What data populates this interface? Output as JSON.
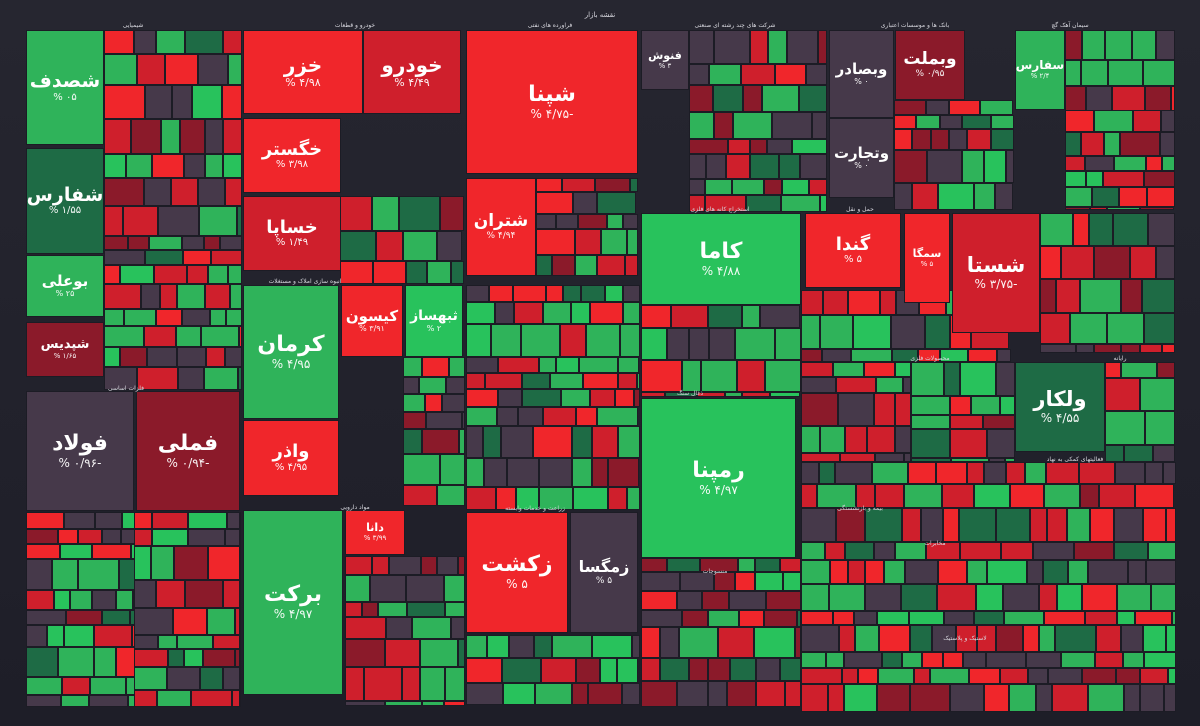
{
  "title": "نقشه بازار",
  "colors": {
    "strong_red": "#f0262b",
    "red": "#cf1f2c",
    "dark_red": "#8b1a2a",
    "neutral": "#46394a",
    "dark_green": "#1e6b45",
    "green": "#2fb35a",
    "bright_green": "#28c25c"
  },
  "sectors": [
    "شیمیایی",
    "خودرو و قطعات",
    "فراورده های نفتی",
    "شرکت های چند رشته ای صنعتی",
    "بانک ها و موسسات اعتباری",
    "سیمان آهک گچ",
    "فلزات اساسی",
    "انبوه سازی املاک و مستغلات",
    "استخراج کانه های فلزی",
    "حمل و نقل",
    "محصولات فلزی",
    "ذغال سنگ",
    "بیمه و بازنشستگی",
    "رایانه",
    "زراعت و خدمات وابسته",
    "مواد دارویی",
    "فعالیتهای کمکی به نهاد",
    "مخابرات",
    "منسوجات",
    "لاستیک و پلاستیک"
  ],
  "chart_data": {
    "type": "heatmap",
    "title": "نقشه بازار",
    "value_unit": "%",
    "tiles": [
      {
        "sector": "شیمیایی",
        "symbol": "شصدف",
        "change": "% ۰۵",
        "tone": "green"
      },
      {
        "sector": "شیمیایی",
        "symbol": "شفارس",
        "change": "% ۱/۵۵",
        "tone": "dark_green"
      },
      {
        "sector": "شیمیایی",
        "symbol": "بوعلی",
        "change": "% ۲۵",
        "tone": "green"
      },
      {
        "sector": "شیمیایی",
        "symbol": "شپدیس",
        "change": "% ۱/۶۵",
        "tone": "dark_red"
      },
      {
        "sector": "خودرو و قطعات",
        "symbol": "خزر",
        "change": "% ۴/۹۸",
        "tone": "strong_red"
      },
      {
        "sector": "خودرو و قطعات",
        "symbol": "خودرو",
        "change": "% ۴/۴۹",
        "tone": "red"
      },
      {
        "sector": "خودرو و قطعات",
        "symbol": "خگستر",
        "change": "% ۳/۹۸",
        "tone": "strong_red"
      },
      {
        "sector": "خودرو و قطعات",
        "symbol": "خساپا",
        "change": "% ۱/۴۹",
        "tone": "red"
      },
      {
        "sector": "فراورده های نفتی",
        "symbol": "شپنا",
        "change": "% ۴/۷۵-",
        "tone": "strong_red"
      },
      {
        "sector": "فراورده های نفتی",
        "symbol": "شتران",
        "change": "% ۴/۹۴",
        "tone": "strong_red"
      },
      {
        "sector": "شرکت های چند رشته ای صنعتی",
        "symbol": "فنوش",
        "change": "% ۳",
        "tone": "neutral"
      },
      {
        "sector": "بانک ها و موسسات اعتباری",
        "symbol": "وبصادر",
        "change": "% ۰",
        "tone": "neutral"
      },
      {
        "sector": "بانک ها و موسسات اعتباری",
        "symbol": "وبملت",
        "change": "% ۰/۹۵",
        "tone": "dark_red"
      },
      {
        "sector": "بانک ها و موسسات اعتباری",
        "symbol": "وتجارت",
        "change": "% ۰",
        "tone": "neutral"
      },
      {
        "sector": "سیمان آهک گچ",
        "symbol": "سفارس",
        "change": "% ۲/۴",
        "tone": "green"
      },
      {
        "sector": "فلزات اساسی",
        "symbol": "فولاد",
        "change": "% ۰/۹۶-",
        "tone": "neutral"
      },
      {
        "sector": "فلزات اساسی",
        "symbol": "فملی",
        "change": "% ۰/۹۴-",
        "tone": "dark_red"
      },
      {
        "sector": "انبوه سازی املاک و مستغلات",
        "symbol": "کرمان",
        "change": "% ۴/۹۵",
        "tone": "green"
      },
      {
        "sector": "انبوه سازی املاک و مستغلات",
        "symbol": "کیسون",
        "change": "% ۳/۹۱",
        "tone": "strong_red"
      },
      {
        "sector": "انبوه سازی املاک و مستغلات",
        "symbol": "ثبهساز",
        "change": "% ۲",
        "tone": "bright_green"
      },
      {
        "sector": "انبوه سازی املاک و مستغلات",
        "symbol": "واذر",
        "change": "% ۴/۹۵",
        "tone": "strong_red"
      },
      {
        "sector": "استخراج کانه های فلزی",
        "symbol": "کاما",
        "change": "% ۴/۸۸",
        "tone": "bright_green"
      },
      {
        "sector": "استخراج کانه های فلزی",
        "symbol": "رمپنا",
        "change": "% ۴/۹۷",
        "tone": "bright_green"
      },
      {
        "sector": "حمل و نقل",
        "symbol": "گندا",
        "change": "% ۵",
        "tone": "strong_red"
      },
      {
        "sector": "حمل و نقل",
        "symbol": "سمگا",
        "change": "% ۵",
        "tone": "strong_red"
      },
      {
        "sector": "محصولات فلزی",
        "symbol": "شستا",
        "change": "% ۳/۷۵-",
        "tone": "red"
      },
      {
        "sector": "محصولات فلزی",
        "symbol": "ولکار",
        "change": "% ۴/۵۵",
        "tone": "dark_green"
      },
      {
        "sector": "زراعت و خدمات وابسته",
        "symbol": "زکشت",
        "change": "% ۵",
        "tone": "strong_red"
      },
      {
        "sector": "زراعت و خدمات وابسته",
        "symbol": "زمگسا",
        "change": "% ۵",
        "tone": "neutral"
      },
      {
        "sector": "مواد دارویی",
        "symbol": "برکت",
        "change": "% ۴/۹۷",
        "tone": "green"
      },
      {
        "sector": "مواد دارویی",
        "symbol": "دانا",
        "change": "% ۳/۹۹",
        "tone": "strong_red"
      }
    ]
  }
}
